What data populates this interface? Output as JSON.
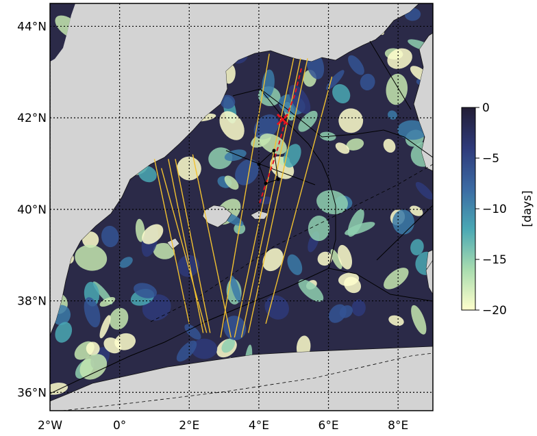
{
  "map": {
    "lon_range": [
      -2,
      9
    ],
    "lat_range": [
      35.6,
      44.5
    ],
    "land_color": "#d3d3d3",
    "sea_base_color": "#2b2a48",
    "lon_ticks": [
      {
        "value": -2,
        "label": "2°W"
      },
      {
        "value": 0,
        "label": "0°"
      },
      {
        "value": 2,
        "label": "2°E"
      },
      {
        "value": 4,
        "label": "4°E"
      },
      {
        "value": 6,
        "label": "6°E"
      },
      {
        "value": 8,
        "label": "8°E"
      }
    ],
    "lat_ticks": [
      {
        "value": 36,
        "label": "36°N"
      },
      {
        "value": 38,
        "label": "38°N"
      },
      {
        "value": 40,
        "label": "40°N"
      },
      {
        "value": 42,
        "label": "42°N"
      },
      {
        "value": 44,
        "label": "44°N"
      }
    ],
    "grid": "dotted",
    "satellite_track_color": "#f2c230",
    "glider_track_color": "#e8141e"
  },
  "colorbar": {
    "label": "[days]",
    "range": [
      -20,
      0
    ],
    "ticks": [
      {
        "value": 0,
        "label": "0"
      },
      {
        "value": -5,
        "label": "−5"
      },
      {
        "value": -10,
        "label": "−10"
      },
      {
        "value": -15,
        "label": "−15"
      },
      {
        "value": -20,
        "label": "−20"
      }
    ],
    "colormap": [
      "#ffffcc",
      "#a8dcaf",
      "#4aa8b4",
      "#3b6aa3",
      "#2e3a7a",
      "#221d35"
    ]
  }
}
